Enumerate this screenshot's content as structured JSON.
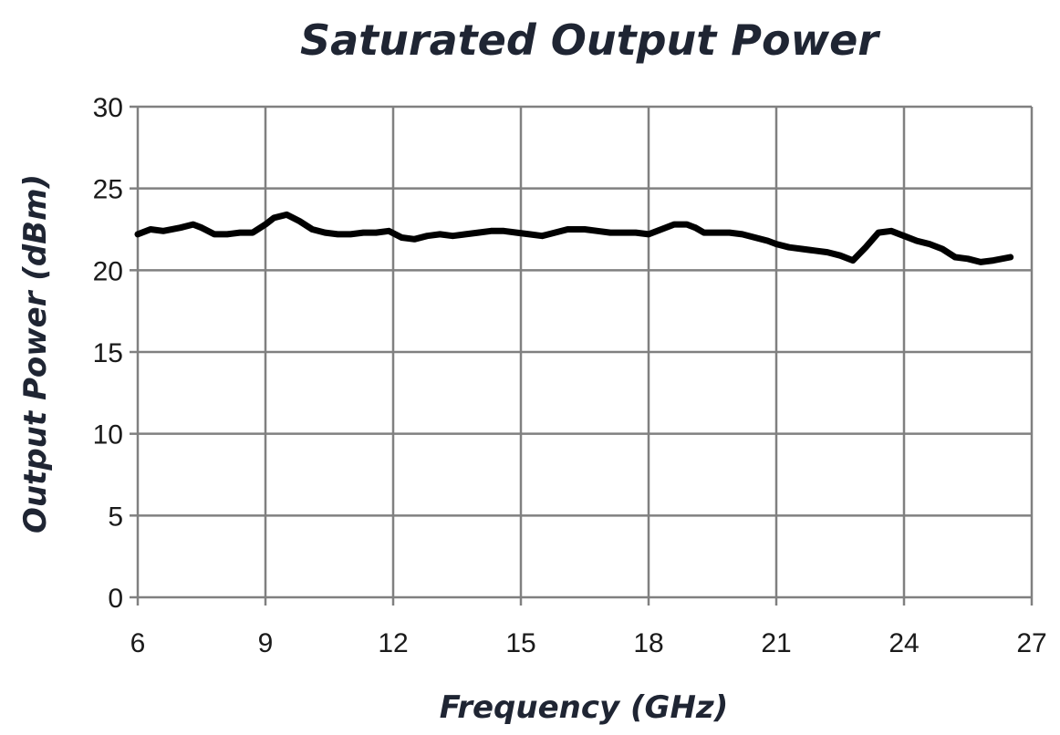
{
  "chart_data": {
    "type": "line",
    "title": "Saturated Output Power",
    "xlabel": "Frequency (GHz)",
    "ylabel": "Output Power (dBm)",
    "xlim": [
      6,
      27
    ],
    "ylim": [
      0,
      30
    ],
    "xticks": [
      6,
      9,
      12,
      15,
      18,
      21,
      24,
      27
    ],
    "yticks": [
      0,
      5,
      10,
      15,
      20,
      25,
      30
    ],
    "grid": true,
    "colors": {
      "line": "#000000",
      "grid": "#808080",
      "text": "#1f2533"
    },
    "series": [
      {
        "x": [
          6.0,
          6.3,
          6.6,
          7.0,
          7.3,
          7.5,
          7.8,
          8.1,
          8.4,
          8.7,
          9.0,
          9.2,
          9.5,
          9.8,
          10.1,
          10.4,
          10.7,
          11.0,
          11.3,
          11.6,
          11.9,
          12.2,
          12.5,
          12.8,
          13.1,
          13.4,
          13.7,
          14.0,
          14.3,
          14.6,
          14.9,
          15.2,
          15.5,
          15.8,
          16.1,
          16.5,
          16.8,
          17.1,
          17.4,
          17.7,
          18.0,
          18.3,
          18.6,
          18.9,
          19.1,
          19.3,
          19.6,
          19.9,
          20.2,
          20.5,
          20.8,
          21.0,
          21.3,
          21.6,
          21.9,
          22.2,
          22.5,
          22.8,
          23.1,
          23.4,
          23.7,
          24.0,
          24.3,
          24.6,
          24.9,
          25.2,
          25.5,
          25.8,
          26.1,
          26.5
        ],
        "y": [
          22.2,
          22.5,
          22.4,
          22.6,
          22.8,
          22.6,
          22.2,
          22.2,
          22.3,
          22.3,
          22.8,
          23.2,
          23.4,
          23.0,
          22.5,
          22.3,
          22.2,
          22.2,
          22.3,
          22.3,
          22.4,
          22.0,
          21.9,
          22.1,
          22.2,
          22.1,
          22.2,
          22.3,
          22.4,
          22.4,
          22.3,
          22.2,
          22.1,
          22.3,
          22.5,
          22.5,
          22.4,
          22.3,
          22.3,
          22.3,
          22.2,
          22.5,
          22.8,
          22.8,
          22.6,
          22.3,
          22.3,
          22.3,
          22.2,
          22.0,
          21.8,
          21.6,
          21.4,
          21.3,
          21.2,
          21.1,
          20.9,
          20.6,
          21.4,
          22.3,
          22.4,
          22.1,
          21.8,
          21.6,
          21.3,
          20.8,
          20.7,
          20.5,
          20.6,
          20.8
        ]
      }
    ]
  }
}
